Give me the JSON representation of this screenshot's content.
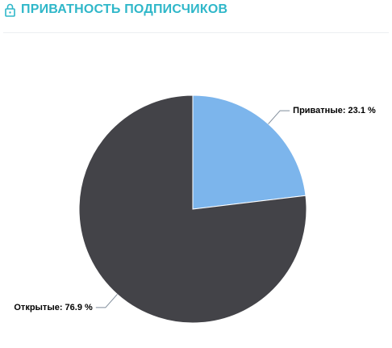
{
  "chart_data": {
    "type": "pie",
    "title": "ПРИВАТНОСТЬ ПОДПИСЧИКОВ",
    "values": [
      23.1,
      76.9
    ],
    "value_labels": [
      "Приватные: 23.1 %",
      "Открытые: 76.9 %"
    ],
    "colors": [
      "#7cb5ec",
      "#434348"
    ]
  }
}
